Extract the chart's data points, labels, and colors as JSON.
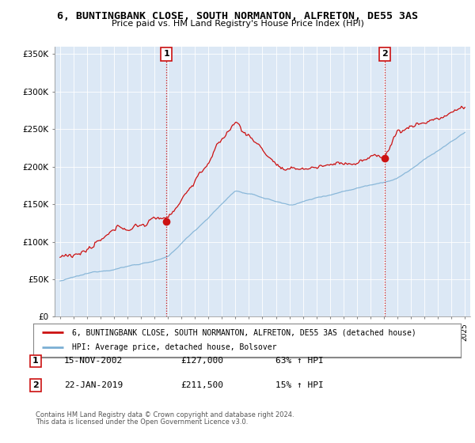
{
  "title": "6, BUNTINGBANK CLOSE, SOUTH NORMANTON, ALFRETON, DE55 3AS",
  "subtitle": "Price paid vs. HM Land Registry's House Price Index (HPI)",
  "ylabel_ticks": [
    "£0",
    "£50K",
    "£100K",
    "£150K",
    "£200K",
    "£250K",
    "£300K",
    "£350K"
  ],
  "ytick_values": [
    0,
    50000,
    100000,
    150000,
    200000,
    250000,
    300000,
    350000
  ],
  "ylim": [
    0,
    360000
  ],
  "xlim_start": 1994.6,
  "xlim_end": 2025.4,
  "sale1_date": 2002.88,
  "sale1_price": 127000,
  "sale1_label": "1",
  "sale2_date": 2019.07,
  "sale2_price": 211500,
  "sale2_label": "2",
  "hpi_color": "#7bafd4",
  "price_color": "#cc1111",
  "vline_color": "#cc1111",
  "bg_fill_color": "#dce8f5",
  "background_color": "#ffffff",
  "grid_color": "#aaaacc",
  "legend_entries": [
    "6, BUNTINGBANK CLOSE, SOUTH NORMANTON, ALFRETON, DE55 3AS (detached house)",
    "HPI: Average price, detached house, Bolsover"
  ],
  "footer_line1": "Contains HM Land Registry data © Crown copyright and database right 2024.",
  "footer_line2": "This data is licensed under the Open Government Licence v3.0.",
  "table_rows": [
    [
      "1",
      "15-NOV-2002",
      "£127,000",
      "63% ↑ HPI"
    ],
    [
      "2",
      "22-JAN-2019",
      "£211,500",
      "15% ↑ HPI"
    ]
  ]
}
